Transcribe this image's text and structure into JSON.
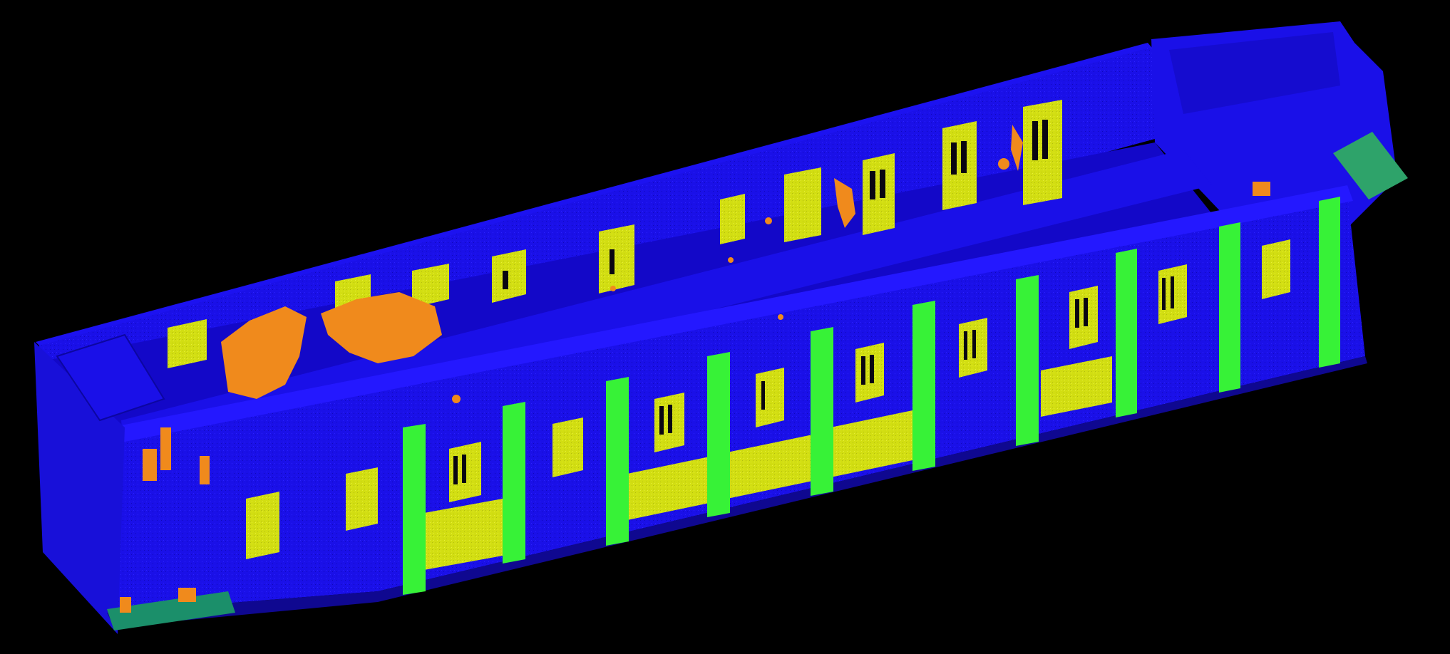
{
  "scene": {
    "background_color": "#000000",
    "classes": [
      {
        "name": "wall",
        "color": "#1a10e8"
      },
      {
        "name": "window",
        "color": "#d6e20a"
      },
      {
        "name": "column",
        "color": "#37f237"
      },
      {
        "name": "clutter",
        "color": "#f08a1c"
      },
      {
        "name": "stairs",
        "color": "#2ea36a"
      }
    ]
  }
}
